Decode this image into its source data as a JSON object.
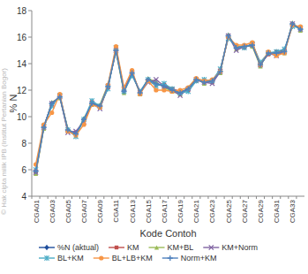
{
  "chart_data": {
    "type": "line",
    "x_label": "Kode Contoh",
    "y_label": "% N",
    "annotations": [
      "© Hak cipta milik IPB (Institut Pertanian Bogor)"
    ],
    "categories": [
      "CGA01",
      null,
      "CGA03",
      null,
      "CGA05",
      null,
      "CGA07",
      null,
      "CGA09",
      null,
      "CGA11",
      null,
      "CGA13",
      null,
      "CGA15",
      null,
      "CGA17",
      null,
      "CGA19",
      null,
      "CGA21",
      null,
      "CGA23",
      null,
      "CGA25",
      null,
      "CGA27",
      null,
      "CGA29",
      null,
      "CGA31",
      null,
      "CGA33",
      null
    ],
    "ylim": [
      4,
      18
    ],
    "yticks": [
      4,
      6,
      8,
      10,
      12,
      14,
      16,
      18
    ],
    "grid": false,
    "legend": "bottom",
    "series": [
      {
        "name": "%N (aktual)",
        "color": "#1f4e9c",
        "marker": "diamond",
        "values": [
          5.8,
          9.2,
          11.0,
          11.5,
          9.0,
          8.7,
          9.8,
          11.0,
          10.8,
          12.3,
          15.0,
          11.9,
          13.3,
          11.8,
          12.8,
          12.5,
          12.3,
          12.0,
          11.8,
          12.1,
          12.8,
          12.6,
          12.7,
          13.4,
          16.1,
          15.2,
          15.3,
          15.4,
          13.9,
          14.8,
          14.8,
          14.9,
          17.0,
          16.6
        ]
      },
      {
        "name": "KM",
        "color": "#c0504d",
        "marker": "square",
        "values": [
          5.9,
          9.3,
          10.9,
          11.6,
          8.9,
          8.8,
          9.7,
          11.1,
          10.7,
          12.2,
          15.1,
          12.0,
          13.2,
          11.9,
          12.7,
          12.4,
          12.4,
          12.1,
          11.9,
          12.0,
          12.7,
          12.7,
          12.6,
          13.5,
          16.0,
          15.3,
          15.2,
          15.5,
          14.0,
          14.7,
          14.9,
          15.0,
          16.9,
          16.7
        ]
      },
      {
        "name": "KM+BL",
        "color": "#9bbb59",
        "marker": "triangle",
        "values": [
          5.7,
          9.1,
          11.1,
          11.4,
          9.1,
          8.6,
          9.9,
          10.9,
          10.9,
          12.4,
          14.9,
          11.8,
          13.4,
          11.7,
          12.9,
          12.6,
          12.2,
          11.9,
          11.7,
          12.2,
          12.9,
          12.5,
          12.8,
          13.3,
          16.2,
          15.1,
          15.4,
          15.3,
          13.8,
          14.9,
          14.7,
          14.8,
          17.1,
          16.5
        ]
      },
      {
        "name": "KM+Norm",
        "color": "#8064a2",
        "marker": "x",
        "values": [
          5.8,
          9.2,
          11.0,
          11.5,
          8.8,
          8.9,
          9.6,
          11.0,
          10.6,
          12.3,
          15.0,
          12.1,
          13.3,
          11.8,
          12.6,
          12.8,
          12.3,
          12.0,
          11.6,
          12.1,
          12.8,
          12.6,
          12.5,
          13.4,
          16.1,
          15.0,
          15.3,
          15.4,
          13.9,
          14.8,
          14.6,
          14.9,
          17.0,
          16.6
        ]
      },
      {
        "name": "BL+KM",
        "color": "#4bacc6",
        "marker": "star",
        "values": [
          6.0,
          9.3,
          10.8,
          11.6,
          9.0,
          8.5,
          9.8,
          11.2,
          10.8,
          12.1,
          15.2,
          11.9,
          13.1,
          11.9,
          12.8,
          12.3,
          12.5,
          12.1,
          11.8,
          11.9,
          12.7,
          12.8,
          12.7,
          13.6,
          15.9,
          15.3,
          15.2,
          15.5,
          14.1,
          14.8,
          14.9,
          15.1,
          16.8,
          16.7
        ]
      },
      {
        "name": "BL+LB+KM",
        "color": "#f79646",
        "marker": "circle",
        "values": [
          6.4,
          9.4,
          10.3,
          11.7,
          8.9,
          8.6,
          9.4,
          10.9,
          10.7,
          12.4,
          15.3,
          12.2,
          13.5,
          11.7,
          12.7,
          12.0,
          12.0,
          11.9,
          12.0,
          12.2,
          12.9,
          12.7,
          12.8,
          13.4,
          16.0,
          15.4,
          15.4,
          15.6,
          13.9,
          14.9,
          14.6,
          14.8,
          16.9,
          16.8
        ]
      },
      {
        "name": "Norm+KM",
        "color": "#4f81bd",
        "marker": "plus",
        "values": [
          5.9,
          9.2,
          11.0,
          11.5,
          9.0,
          8.7,
          9.8,
          11.0,
          10.8,
          12.3,
          15.0,
          11.9,
          13.3,
          11.8,
          12.8,
          12.5,
          12.3,
          12.0,
          11.8,
          12.1,
          12.8,
          12.6,
          12.7,
          13.4,
          16.1,
          15.2,
          15.3,
          15.4,
          13.9,
          14.8,
          14.8,
          14.9,
          17.0,
          16.6
        ]
      }
    ]
  }
}
